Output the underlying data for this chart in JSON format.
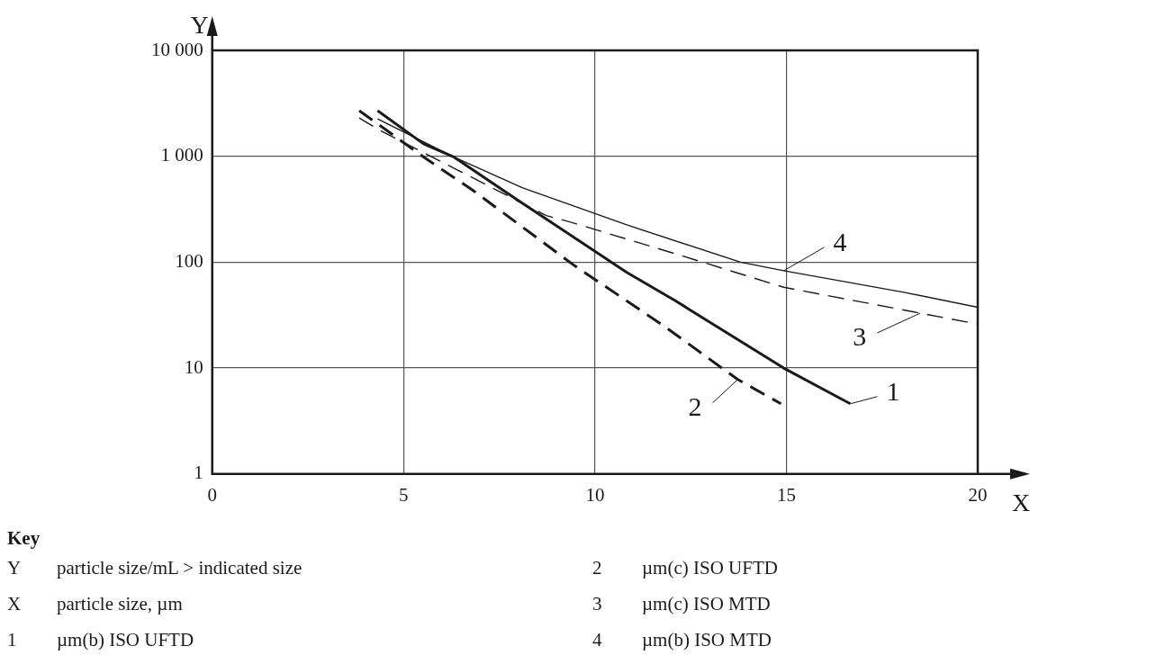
{
  "chart_data": {
    "type": "line",
    "xlabel": "X",
    "ylabel": "Y",
    "log": "y",
    "grid": true,
    "legend": "right",
    "marker": "none",
    "xlim": [
      0,
      20
    ],
    "xticks": [
      0,
      5,
      10,
      15,
      20
    ],
    "ylim": [
      1,
      10000
    ],
    "yticks": [
      1,
      10,
      100,
      {
        "value": 1000,
        "label": "1 000"
      },
      {
        "value": 10000,
        "label": "10 000"
      }
    ],
    "series": [
      {
        "name": "1",
        "color": "#1a1a1a",
        "line_style": "solid",
        "x": [
          4.32,
          5.52,
          6.32,
          7.94,
          10.83,
          12.11,
          14.93,
          16.67
        ],
        "values": [
          2700,
          1310,
          980,
          395,
          80,
          43,
          10,
          4.6
        ]
      },
      {
        "name": "2",
        "color": "#1a1a1a",
        "line_style": "dashed",
        "x": [
          3.84,
          5.6,
          6.8,
          9.46,
          11.8,
          13.73,
          14.86
        ],
        "values": [
          2700,
          940,
          480,
          93,
          25,
          7.8,
          4.6
        ]
      },
      {
        "name": "3",
        "color": "#1a1a1a",
        "line_style": "dashed",
        "x": [
          3.84,
          4.39,
          6.32,
          8.73,
          9.38,
          12.2,
          14.93,
          18.5,
          20
        ],
        "values": [
          2300,
          1750,
          770,
          275,
          238,
          117,
          58,
          33,
          26
        ]
      },
      {
        "name": "4",
        "color": "#1a1a1a",
        "line_style": "solid",
        "x": [
          4.32,
          6.32,
          8.1,
          10.83,
          13.8,
          14.93,
          18.07,
          20
        ],
        "values": [
          2250,
          980,
          505,
          225,
          100,
          83,
          52,
          37.5
        ]
      }
    ],
    "annotations": [
      "Key",
      "Y\tparticle size/mL > indicated size",
      "X\tparticle size, µm",
      "1\tµm(b) ISO UFTD",
      "2\tµm(c) ISO UFTD",
      "3\tµm(c) ISO MTD",
      "4\tµm(b) ISO MTD"
    ]
  }
}
